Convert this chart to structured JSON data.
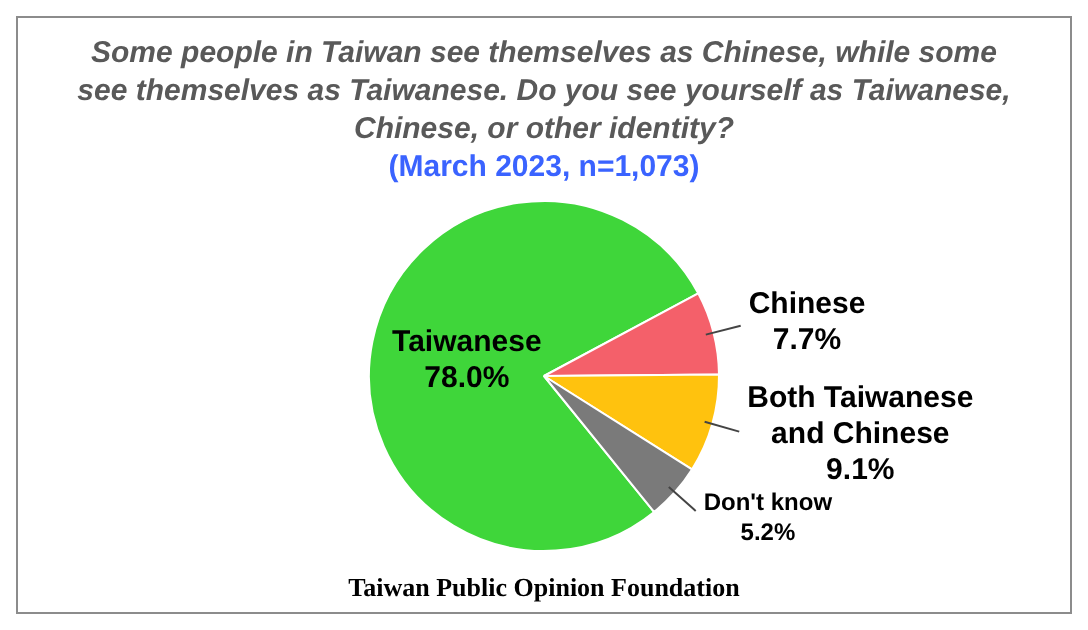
{
  "chart_data": {
    "type": "pie",
    "title": "Some people in Taiwan see themselves as Chinese, while some see themselves as Taiwanese. Do you see yourself as Taiwanese, Chinese, or other identity?",
    "subtitle": "(March 2023, n=1,073)",
    "categories": [
      "Taiwanese",
      "Chinese",
      "Both Taiwanese and Chinese",
      "Don't know"
    ],
    "values": [
      78.0,
      7.7,
      9.1,
      5.2
    ],
    "value_labels": [
      "78.0%",
      "7.7%",
      "9.1%",
      "5.2%"
    ],
    "colors": [
      "#3fd63a",
      "#f4606a",
      "#ffc20e",
      "#7a7a7a"
    ],
    "annotations": [
      "Taiwan Public Opinion Foundation"
    ],
    "legend": false
  }
}
